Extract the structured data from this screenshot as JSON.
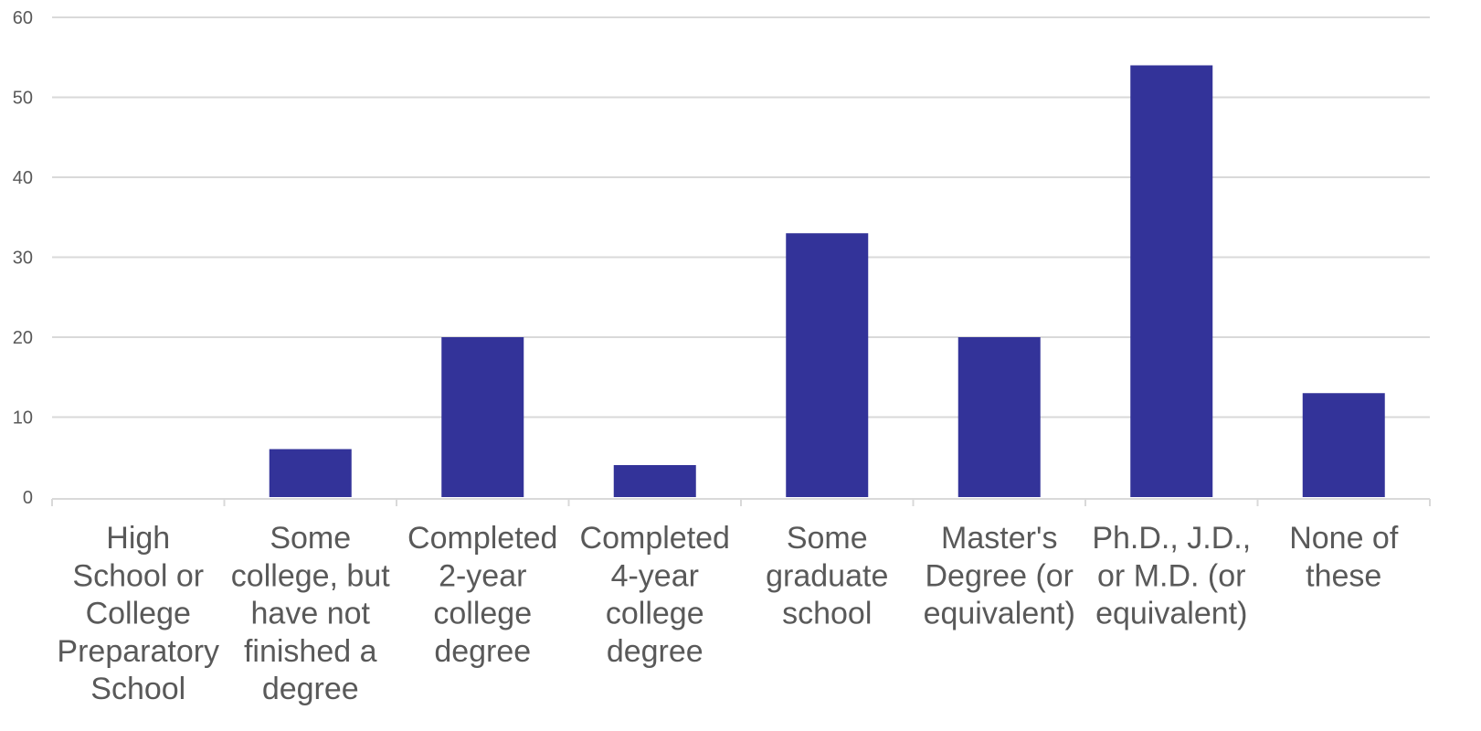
{
  "chart_data": {
    "type": "bar",
    "title": "",
    "xlabel": "",
    "ylabel": "",
    "categories": [
      "High School or College Preparatory School",
      "Some college, but have not finished a degree",
      "Completed 2-year college degree",
      "Completed 4-year college degree",
      "Some graduate school",
      "Master's Degree (or equivalent)",
      "Ph.D., J.D., or M.D. (or equivalent)",
      "None of these"
    ],
    "category_lines": [
      [
        "High",
        "School or",
        "College",
        "Preparatory",
        "School"
      ],
      [
        "Some",
        "college, but",
        "have not",
        "finished a",
        "degree"
      ],
      [
        "Completed",
        "2-year",
        "college",
        "degree"
      ],
      [
        "Completed",
        "4-year",
        "college",
        "degree"
      ],
      [
        "Some",
        "graduate",
        "school"
      ],
      [
        "Master's",
        "Degree (or",
        "equivalent)"
      ],
      [
        "Ph.D., J.D.,",
        "or M.D. (or",
        "equivalent)"
      ],
      [
        "None of",
        "these"
      ]
    ],
    "values": [
      0,
      6,
      20,
      4,
      33,
      20,
      54,
      13
    ],
    "ylim": [
      0,
      60
    ],
    "yticks": [
      "0",
      "10",
      "20",
      "30",
      "40",
      "50",
      "60"
    ],
    "grid": true,
    "legend": "none",
    "bar_color": "#333399",
    "grid_color": "#d9d9d9",
    "text_color": "#595959"
  }
}
